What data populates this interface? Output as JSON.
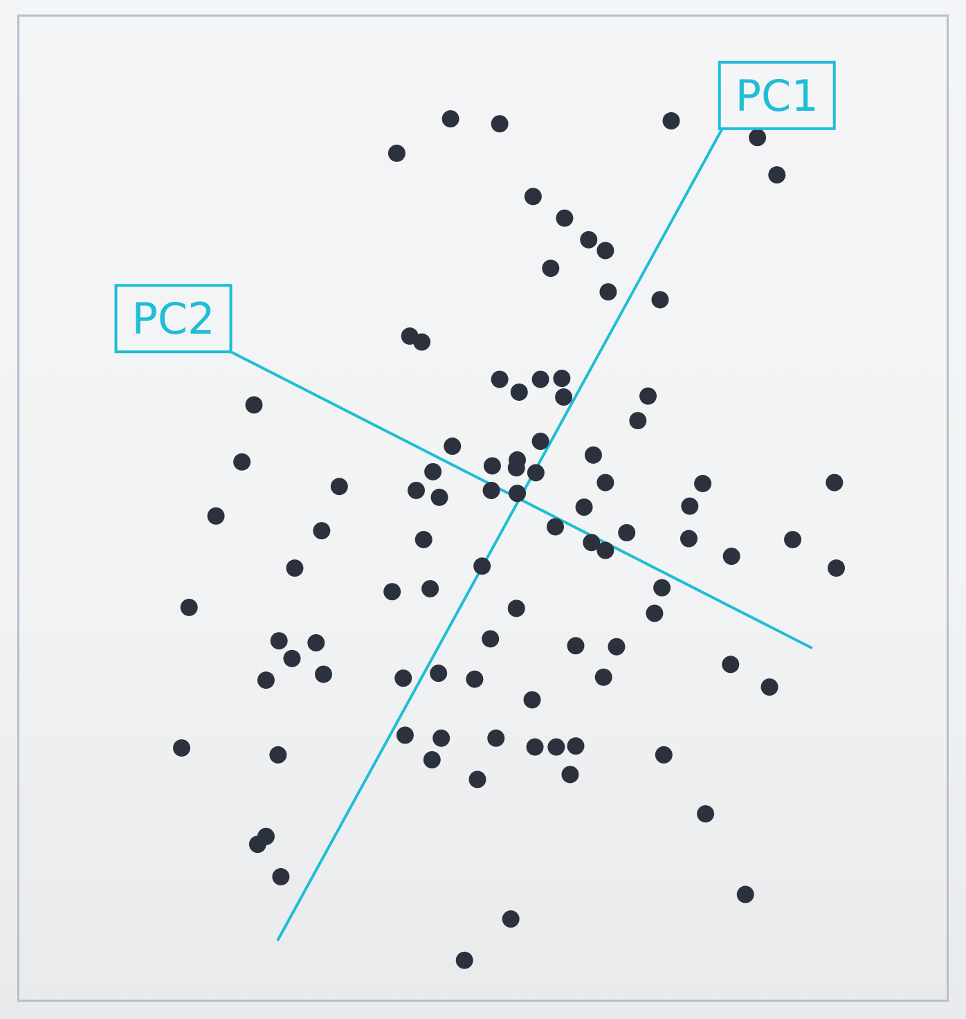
{
  "chart_data": {
    "type": "scatter",
    "title": "",
    "xlabel": "",
    "ylabel": "",
    "xlim": [
      0,
      100
    ],
    "ylim": [
      0,
      100
    ],
    "grid": false,
    "point_color": "#2b323d",
    "axis_color": "#1fbdd6",
    "frame_color": "#b5bfcc",
    "points": [
      {
        "x": 46.5,
        "y": 89.6
      },
      {
        "x": 51.8,
        "y": 89.1
      },
      {
        "x": 40.7,
        "y": 86.1
      },
      {
        "x": 70.3,
        "y": 89.4
      },
      {
        "x": 79.6,
        "y": 87.7
      },
      {
        "x": 81.7,
        "y": 83.9
      },
      {
        "x": 55.4,
        "y": 81.7
      },
      {
        "x": 58.8,
        "y": 79.5
      },
      {
        "x": 61.4,
        "y": 77.3
      },
      {
        "x": 63.2,
        "y": 76.2
      },
      {
        "x": 57.3,
        "y": 74.4
      },
      {
        "x": 63.5,
        "y": 72.0
      },
      {
        "x": 69.1,
        "y": 71.2
      },
      {
        "x": 42.1,
        "y": 67.5
      },
      {
        "x": 43.4,
        "y": 66.9
      },
      {
        "x": 51.8,
        "y": 63.1
      },
      {
        "x": 53.9,
        "y": 61.8
      },
      {
        "x": 56.2,
        "y": 63.1
      },
      {
        "x": 58.5,
        "y": 63.2
      },
      {
        "x": 58.7,
        "y": 61.3
      },
      {
        "x": 67.8,
        "y": 61.4
      },
      {
        "x": 66.7,
        "y": 58.9
      },
      {
        "x": 25.3,
        "y": 60.5
      },
      {
        "x": 56.2,
        "y": 56.8
      },
      {
        "x": 46.7,
        "y": 56.3
      },
      {
        "x": 53.7,
        "y": 54.9
      },
      {
        "x": 61.9,
        "y": 55.4
      },
      {
        "x": 51.0,
        "y": 54.3
      },
      {
        "x": 53.6,
        "y": 54.1
      },
      {
        "x": 55.7,
        "y": 53.6
      },
      {
        "x": 44.6,
        "y": 53.7
      },
      {
        "x": 24.0,
        "y": 54.7
      },
      {
        "x": 63.2,
        "y": 52.6
      },
      {
        "x": 73.7,
        "y": 52.5
      },
      {
        "x": 87.9,
        "y": 52.6
      },
      {
        "x": 34.5,
        "y": 52.2
      },
      {
        "x": 42.8,
        "y": 51.8
      },
      {
        "x": 45.3,
        "y": 51.1
      },
      {
        "x": 50.9,
        "y": 51.8
      },
      {
        "x": 53.7,
        "y": 51.5
      },
      {
        "x": 60.9,
        "y": 50.1
      },
      {
        "x": 72.3,
        "y": 50.2
      },
      {
        "x": 21.2,
        "y": 49.2
      },
      {
        "x": 57.8,
        "y": 48.1
      },
      {
        "x": 65.5,
        "y": 47.5
      },
      {
        "x": 32.6,
        "y": 47.7
      },
      {
        "x": 43.6,
        "y": 46.8
      },
      {
        "x": 61.7,
        "y": 46.5
      },
      {
        "x": 63.2,
        "y": 45.7
      },
      {
        "x": 72.2,
        "y": 46.9
      },
      {
        "x": 83.4,
        "y": 46.8
      },
      {
        "x": 29.7,
        "y": 43.9
      },
      {
        "x": 49.9,
        "y": 44.1
      },
      {
        "x": 76.8,
        "y": 45.1
      },
      {
        "x": 88.1,
        "y": 43.9
      },
      {
        "x": 40.2,
        "y": 41.5
      },
      {
        "x": 44.3,
        "y": 41.8
      },
      {
        "x": 69.3,
        "y": 41.9
      },
      {
        "x": 18.3,
        "y": 39.9
      },
      {
        "x": 53.6,
        "y": 39.8
      },
      {
        "x": 68.5,
        "y": 39.3
      },
      {
        "x": 28.0,
        "y": 36.5
      },
      {
        "x": 32.0,
        "y": 36.3
      },
      {
        "x": 50.8,
        "y": 36.7
      },
      {
        "x": 60.0,
        "y": 36.0
      },
      {
        "x": 64.4,
        "y": 35.9
      },
      {
        "x": 29.4,
        "y": 34.7
      },
      {
        "x": 32.8,
        "y": 33.1
      },
      {
        "x": 76.7,
        "y": 34.1
      },
      {
        "x": 26.6,
        "y": 32.5
      },
      {
        "x": 41.4,
        "y": 32.7
      },
      {
        "x": 45.2,
        "y": 33.2
      },
      {
        "x": 49.1,
        "y": 32.6
      },
      {
        "x": 63.0,
        "y": 32.8
      },
      {
        "x": 80.9,
        "y": 31.8
      },
      {
        "x": 55.3,
        "y": 30.5
      },
      {
        "x": 41.6,
        "y": 26.9
      },
      {
        "x": 45.5,
        "y": 26.6
      },
      {
        "x": 51.4,
        "y": 26.6
      },
      {
        "x": 55.6,
        "y": 25.7
      },
      {
        "x": 57.9,
        "y": 25.7
      },
      {
        "x": 60.0,
        "y": 25.8
      },
      {
        "x": 17.5,
        "y": 25.6
      },
      {
        "x": 27.9,
        "y": 24.9
      },
      {
        "x": 44.5,
        "y": 24.4
      },
      {
        "x": 69.5,
        "y": 24.9
      },
      {
        "x": 49.4,
        "y": 22.4
      },
      {
        "x": 59.4,
        "y": 22.9
      },
      {
        "x": 74.0,
        "y": 18.9
      },
      {
        "x": 26.6,
        "y": 16.6
      },
      {
        "x": 25.7,
        "y": 15.8
      },
      {
        "x": 28.2,
        "y": 12.5
      },
      {
        "x": 78.3,
        "y": 10.7
      },
      {
        "x": 53.0,
        "y": 8.2
      },
      {
        "x": 48.0,
        "y": 4.0
      }
    ],
    "axes": [
      {
        "label": "PC1",
        "from": {
          "x": 27.9,
          "y": 6.1
        },
        "to": {
          "x": 75.8,
          "y": 88.6
        }
      },
      {
        "label": "PC2",
        "from": {
          "x": 22.8,
          "y": 65.9
        },
        "to": {
          "x": 85.4,
          "y": 35.8
        }
      }
    ]
  }
}
